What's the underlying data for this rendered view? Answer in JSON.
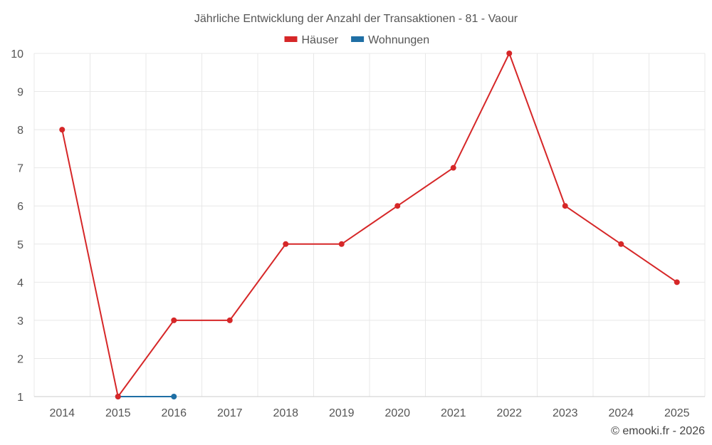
{
  "chart_data": {
    "type": "line",
    "title": "Jährliche Entwicklung der Anzahl der Transaktionen - 81 - Vaour",
    "categories": [
      "2014",
      "2015",
      "2016",
      "2017",
      "2018",
      "2019",
      "2020",
      "2021",
      "2022",
      "2023",
      "2024",
      "2025"
    ],
    "ylim": [
      1,
      10
    ],
    "yticks": [
      1,
      2,
      3,
      4,
      5,
      6,
      7,
      8,
      9,
      10
    ],
    "grid": true,
    "legend_position": "top-center",
    "series": [
      {
        "name": "Häuser",
        "color": "#d62728",
        "values": [
          8,
          1,
          3,
          3,
          5,
          5,
          6,
          7,
          10,
          6,
          5,
          4
        ]
      },
      {
        "name": "Wohnungen",
        "color": "#1f6fa5",
        "values": [
          null,
          1,
          1,
          null,
          null,
          null,
          null,
          null,
          null,
          null,
          null,
          null
        ]
      }
    ]
  },
  "credit": "© emooki.fr - 2026"
}
